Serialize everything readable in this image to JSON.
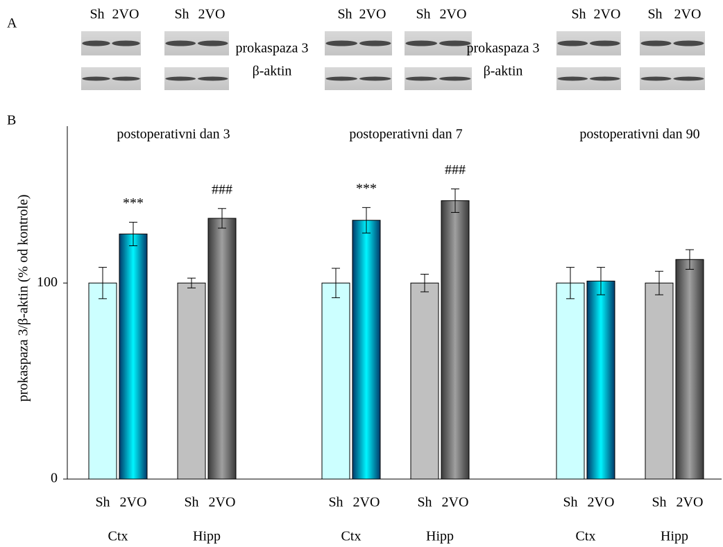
{
  "blot_panel": {
    "label": "A",
    "lane_labels": [
      [
        "Sh",
        "2VO"
      ],
      [
        "Sh",
        "2VO"
      ],
      [
        "Sh",
        "2VO"
      ],
      [
        "Sh",
        "2VO"
      ],
      [
        "Sh",
        "2VO"
      ],
      [
        "Sh",
        "2VO"
      ]
    ],
    "band_labels": [
      {
        "protein": "prokaspaza 3",
        "control": "β-aktin"
      },
      {
        "protein": "prokaspaza 3",
        "control": "β-aktin"
      }
    ]
  },
  "chart_data": {
    "type": "bar",
    "panel_label": "B",
    "ylabel": "prokaspaza 3/β-aktin (% od kontrole)",
    "ylim": [
      0,
      180
    ],
    "yticks": [
      0,
      100
    ],
    "groups": [
      {
        "title": "postoperativni dan 3",
        "tissues": [
          {
            "name": "Ctx",
            "bars": [
              {
                "label": "Sh",
                "value": 100,
                "error": 8,
                "color": "#ccffff"
              },
              {
                "label": "2VO",
                "value": 125,
                "error": 6,
                "color": "#003a6a",
                "highlight": "#00f5ff",
                "annotation": "***"
              }
            ]
          },
          {
            "name": "Hipp",
            "bars": [
              {
                "label": "Sh",
                "value": 100,
                "error": 2.5,
                "color": "#c0c0c0"
              },
              {
                "label": "2VO",
                "value": 133,
                "error": 5,
                "color": "#3a3a3a",
                "highlight": "#a0a0a0",
                "annotation": "###"
              }
            ]
          }
        ]
      },
      {
        "title": "postoperativni dan 7",
        "tissues": [
          {
            "name": "Ctx",
            "bars": [
              {
                "label": "Sh",
                "value": 100,
                "error": 7.5,
                "color": "#ccffff"
              },
              {
                "label": "2VO",
                "value": 132,
                "error": 6.5,
                "color": "#003a6a",
                "highlight": "#00f5ff",
                "annotation": "***"
              }
            ]
          },
          {
            "name": "Hipp",
            "bars": [
              {
                "label": "Sh",
                "value": 100,
                "error": 4.5,
                "color": "#c0c0c0"
              },
              {
                "label": "2VO",
                "value": 142,
                "error": 6,
                "color": "#3a3a3a",
                "highlight": "#a0a0a0",
                "annotation": "###"
              }
            ]
          }
        ]
      },
      {
        "title": "postoperativni dan 90",
        "tissues": [
          {
            "name": "Ctx",
            "bars": [
              {
                "label": "Sh",
                "value": 100,
                "error": 8,
                "color": "#ccffff"
              },
              {
                "label": "2VO",
                "value": 101,
                "error": 7,
                "color": "#003a6a",
                "highlight": "#00f5ff"
              }
            ]
          },
          {
            "name": "Hipp",
            "bars": [
              {
                "label": "Sh",
                "value": 100,
                "error": 6,
                "color": "#c0c0c0"
              },
              {
                "label": "2VO",
                "value": 112,
                "error": 5,
                "color": "#3a3a3a",
                "highlight": "#a0a0a0"
              }
            ]
          }
        ]
      }
    ]
  }
}
